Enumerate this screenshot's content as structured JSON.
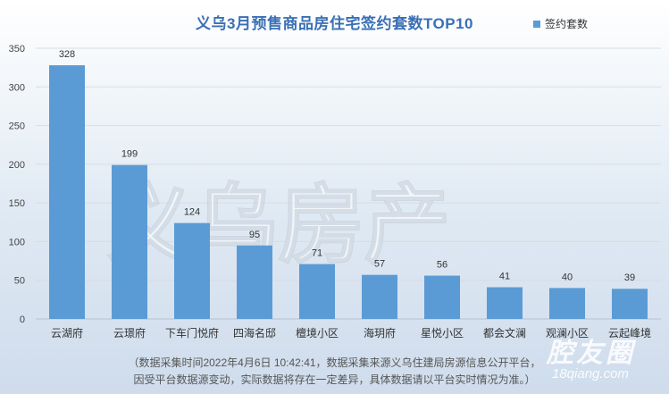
{
  "chart_data": {
    "type": "bar",
    "title": "义乌3月预售商品房住宅签约套数TOP10",
    "categories": [
      "云湖府",
      "云璟府",
      "下车门悦府",
      "四海名邸",
      "檀境小区",
      "海玥府",
      "星悦小区",
      "都会文澜",
      "观澜小区",
      "云起峰境"
    ],
    "series": [
      {
        "name": "签约套数",
        "values": [
          328,
          199,
          124,
          95,
          71,
          57,
          56,
          41,
          40,
          39
        ]
      }
    ],
    "ylim": [
      0,
      350
    ],
    "yticks": [
      0,
      50,
      100,
      150,
      200,
      250,
      300,
      350
    ],
    "grid": true,
    "legend": "top-right",
    "xlabel": "",
    "ylabel": ""
  },
  "colors": {
    "bar": "#5b9bd5",
    "title": "#3a6fb5"
  },
  "footnote": {
    "line1": "（数据采集时间2022年4月6日 10:42:41，数据采集来源义乌住建局房源信息公开平台，",
    "line2": "因受平台数据源变动，实际数据将存在一定差异，具体数据请以平台实时情况为准。）"
  },
  "watermark": {
    "text": "义乌房产"
  },
  "brand": {
    "name": "腔友圈",
    "url": "18qiang.com"
  }
}
